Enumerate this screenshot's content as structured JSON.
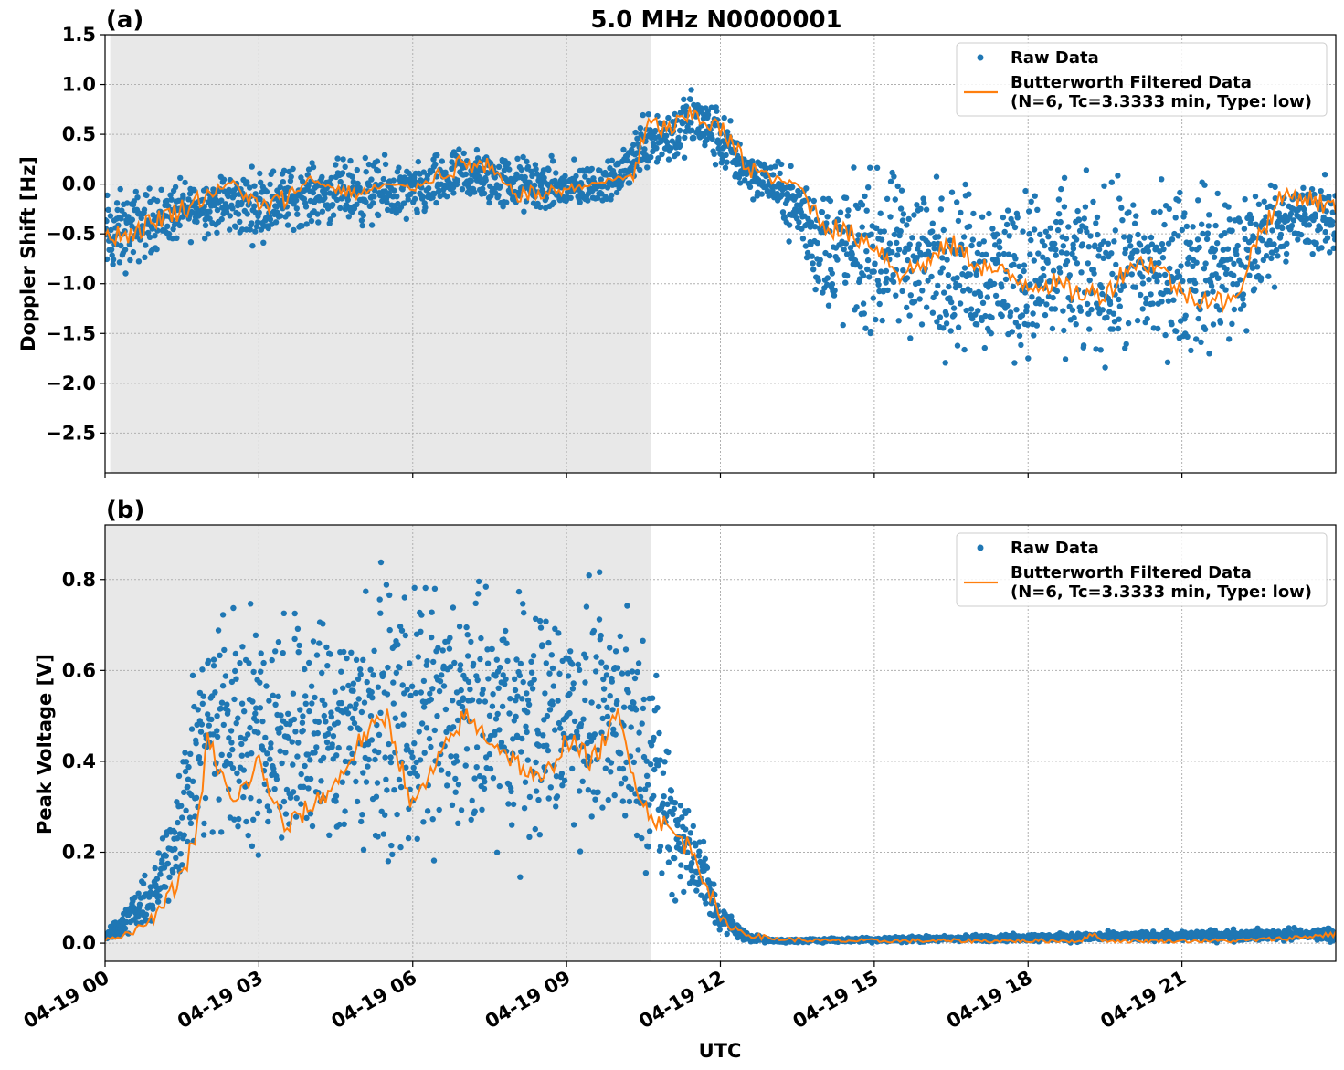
{
  "figure": {
    "title": "5.0 MHz N0000001",
    "xlabel": "UTC"
  },
  "colors": {
    "raw": "#1f77b4",
    "filtered": "#ff7f0e",
    "night_shade": "#e8e8e8",
    "grid": "#b0b0b0"
  },
  "legend": {
    "raw_label": "Raw Data",
    "filtered_label_line1": "Butterworth Filtered Data",
    "filtered_label_line2": "(N=6, Tc=3.3333 min, Type: low)"
  },
  "chart_data": [
    {
      "type": "scatter",
      "panel_label": "(a)",
      "ylabel": "Doppler Shift [Hz]",
      "xlim": [
        0,
        24
      ],
      "ylim": [
        -2.9,
        1.5
      ],
      "x_unit": "hours UTC on 04-19",
      "yticks": [
        -2.5,
        -2.0,
        -1.5,
        -1.0,
        -0.5,
        0.0,
        0.5,
        1.0,
        1.5
      ],
      "ytick_labels": [
        "−2.5",
        "−2.0",
        "−1.5",
        "−1.0",
        "−0.5",
        "0.0",
        "0.5",
        "1.0",
        "1.5"
      ],
      "grid": true,
      "legend_position": "top-right",
      "shaded_interval": [
        0.1,
        10.65
      ],
      "series": [
        {
          "name": "Butterworth Filtered Data",
          "kind": "line",
          "x": [
            0,
            0.5,
            1,
            1.5,
            2,
            2.5,
            3,
            3.5,
            4,
            4.5,
            5,
            5.5,
            6,
            6.5,
            7,
            7.5,
            8,
            8.5,
            9,
            9.5,
            10,
            10.3,
            10.6,
            11,
            11.5,
            12,
            12.5,
            13,
            13.5,
            14,
            14.5,
            15,
            15.5,
            16,
            16.5,
            17,
            17.5,
            18,
            18.5,
            19,
            19.5,
            20,
            20.5,
            21,
            21.5,
            22,
            22.5,
            23,
            23.5,
            24
          ],
          "y": [
            -0.5,
            -0.5,
            -0.35,
            -0.25,
            -0.1,
            0.02,
            -0.25,
            -0.15,
            0.05,
            -0.05,
            -0.1,
            0.0,
            -0.05,
            0.1,
            0.2,
            0.15,
            -0.1,
            -0.1,
            -0.05,
            0.0,
            0.05,
            0.1,
            0.6,
            0.55,
            0.7,
            0.55,
            0.2,
            0.05,
            0.0,
            -0.4,
            -0.5,
            -0.6,
            -0.9,
            -0.8,
            -0.6,
            -0.8,
            -0.9,
            -1.0,
            -1.0,
            -1.1,
            -1.1,
            -0.8,
            -0.8,
            -1.1,
            -1.15,
            -1.2,
            -0.5,
            -0.1,
            -0.15,
            -0.25
          ]
        },
        {
          "name": "Raw Data",
          "kind": "points",
          "envelope_x": [
            0,
            1,
            2,
            3,
            4,
            5,
            6,
            7,
            8,
            9,
            10,
            10.6,
            11,
            11.5,
            12,
            12.5,
            13,
            13.5,
            14,
            15,
            16,
            17,
            18,
            19,
            20,
            21,
            22,
            22.5,
            23,
            24
          ],
          "envelope_min": [
            -1.2,
            -0.8,
            -0.6,
            -0.7,
            -0.5,
            -0.55,
            -0.5,
            -0.3,
            -0.4,
            -0.4,
            -0.2,
            0.0,
            0.05,
            0.2,
            0.0,
            -0.2,
            -0.3,
            -0.8,
            -1.6,
            -1.8,
            -1.9,
            -2.0,
            -2.1,
            -2.1,
            -2.1,
            -2.0,
            -2.1,
            -1.5,
            -0.9,
            -0.9
          ],
          "envelope_max": [
            0.1,
            0.1,
            0.2,
            0.3,
            0.3,
            0.4,
            0.3,
            0.5,
            0.4,
            0.3,
            0.3,
            1.0,
            0.9,
            1.1,
            0.9,
            0.5,
            0.3,
            0.3,
            0.3,
            0.4,
            0.4,
            0.3,
            0.3,
            0.3,
            0.3,
            0.3,
            0.4,
            0.3,
            0.2,
            0.2
          ]
        }
      ]
    },
    {
      "type": "scatter",
      "panel_label": "(b)",
      "ylabel": "Peak Voltage [V]",
      "xlim": [
        0,
        24
      ],
      "ylim": [
        -0.04,
        0.92
      ],
      "x_unit": "hours UTC on 04-19",
      "yticks": [
        0.0,
        0.2,
        0.4,
        0.6,
        0.8
      ],
      "ytick_labels": [
        "0.0",
        "0.2",
        "0.4",
        "0.6",
        "0.8"
      ],
      "xticks": [
        0,
        3,
        6,
        9,
        12,
        15,
        18,
        21
      ],
      "xtick_labels": [
        "04-19 00",
        "04-19 03",
        "04-19 06",
        "04-19 09",
        "04-19 12",
        "04-19 15",
        "04-19 18",
        "04-19 21"
      ],
      "grid": true,
      "legend_position": "top-right",
      "shaded_interval": [
        0.0,
        10.65
      ],
      "series": [
        {
          "name": "Butterworth Filtered Data",
          "kind": "line",
          "x": [
            0,
            0.5,
            1,
            1.5,
            1.8,
            2,
            2.5,
            3,
            3.5,
            4,
            4.5,
            5,
            5.5,
            6,
            6.5,
            7,
            7.5,
            8,
            8.5,
            9,
            9.5,
            10,
            10.5,
            11,
            11.5,
            12,
            12.5,
            13,
            14,
            15,
            16,
            17,
            18,
            19,
            19.3,
            19.5,
            20,
            21,
            22,
            23,
            24
          ],
          "y": [
            0.01,
            0.02,
            0.06,
            0.15,
            0.25,
            0.45,
            0.3,
            0.4,
            0.25,
            0.3,
            0.35,
            0.45,
            0.5,
            0.3,
            0.4,
            0.5,
            0.45,
            0.4,
            0.35,
            0.45,
            0.4,
            0.5,
            0.3,
            0.25,
            0.2,
            0.05,
            0.02,
            0.01,
            0.005,
            0.005,
            0.005,
            0.005,
            0.005,
            0.005,
            0.02,
            0.005,
            0.005,
            0.005,
            0.005,
            0.01,
            0.02
          ]
        },
        {
          "name": "Raw Data",
          "kind": "points",
          "envelope_x": [
            0,
            1,
            1.5,
            2,
            3,
            4,
            5,
            6,
            7,
            8,
            9,
            10,
            10.6,
            11,
            11.5,
            12,
            12.5,
            13,
            24
          ],
          "envelope_min": [
            0.0,
            0.02,
            0.1,
            0.1,
            0.1,
            0.08,
            0.1,
            0.08,
            0.1,
            0.1,
            0.15,
            0.15,
            0.1,
            0.05,
            0.02,
            0.01,
            0.0,
            0.0,
            0.0
          ],
          "envelope_max": [
            0.03,
            0.2,
            0.5,
            0.85,
            0.85,
            0.85,
            0.88,
            0.88,
            0.88,
            0.88,
            0.85,
            0.87,
            0.75,
            0.5,
            0.35,
            0.1,
            0.03,
            0.01,
            0.04
          ]
        }
      ]
    }
  ]
}
